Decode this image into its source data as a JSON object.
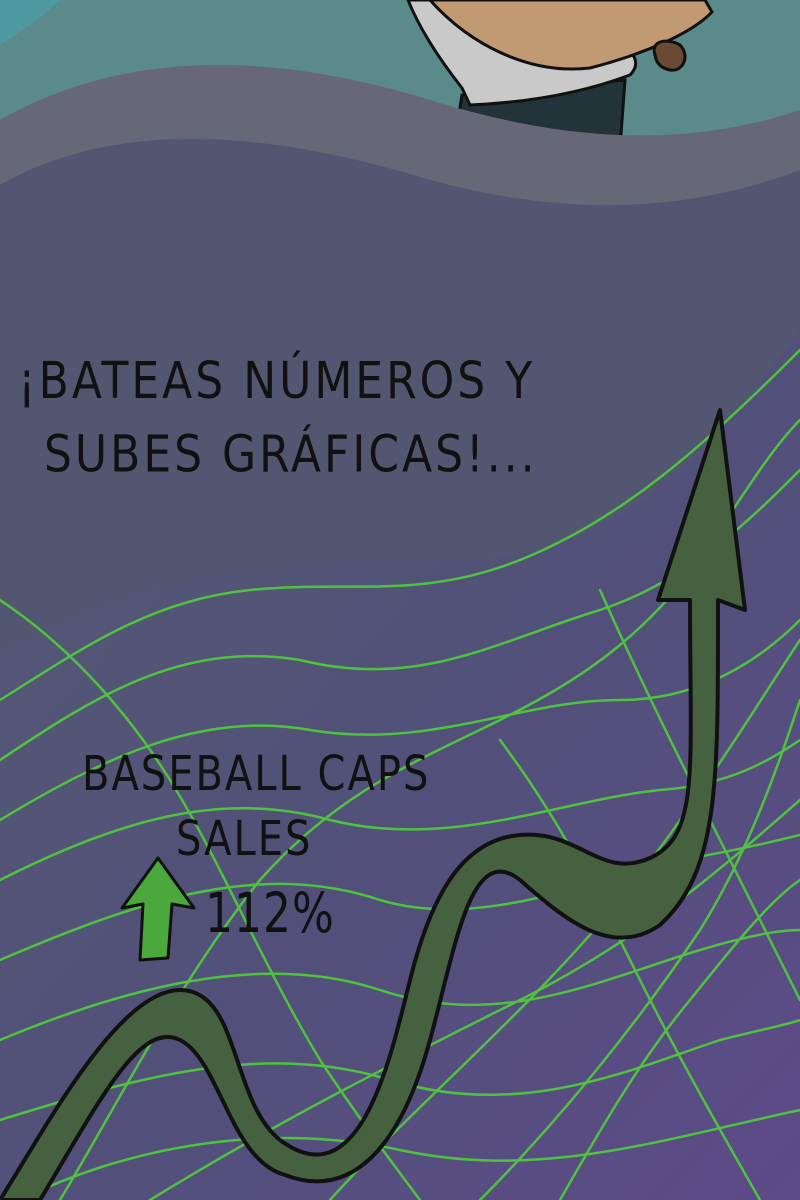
{
  "panel": {
    "headline": {
      "line1": "¡Bateas números y",
      "line2": "subes gráficas!..."
    },
    "sales_label": {
      "line1": "Baseball caps",
      "line2": "Sales"
    },
    "growth": {
      "value": "112%",
      "direction": "up-arrow-icon"
    }
  },
  "colors": {
    "sky_teal": "#5a8a8a",
    "slate_band": "#666878",
    "dusk_band": "#525670",
    "violet_band": "#5b4a86",
    "line_green": "#4fc23f",
    "arrow_green": "#46613f",
    "badge_green": "#4aa83c",
    "ink": "#111111"
  }
}
